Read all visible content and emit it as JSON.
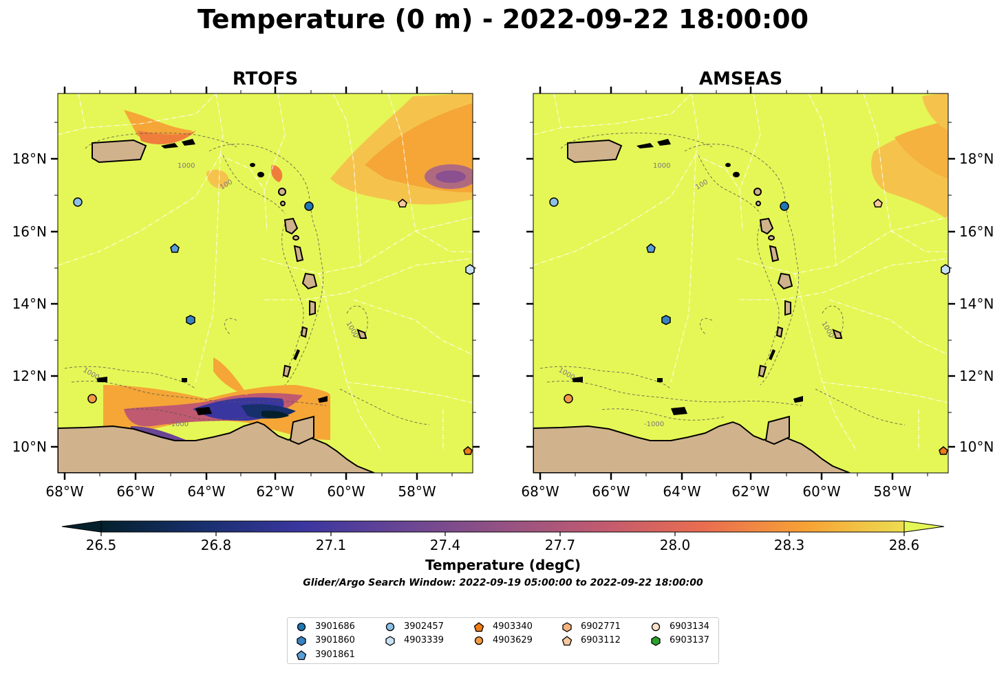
{
  "title": "Temperature (0 m) - 2022-09-22 18:00:00",
  "panels": [
    {
      "title": "RTOFS"
    },
    {
      "title": "AMSEAS"
    }
  ],
  "axes": {
    "lon_ticks": [
      "68°W",
      "66°W",
      "64°W",
      "62°W",
      "60°W",
      "58°W"
    ],
    "lat_ticks": [
      "18°N",
      "16°N",
      "14°N",
      "12°N",
      "10°N"
    ],
    "contour_labels": [
      "1000",
      "100",
      "1000",
      "1000",
      "-1000"
    ]
  },
  "colorbar": {
    "label": "Temperature (degC)",
    "ticks": [
      "26.5",
      "26.8",
      "27.1",
      "27.4",
      "27.7",
      "28.0",
      "28.3",
      "28.6"
    ],
    "min": 26.5,
    "max": 28.6,
    "colormap": "thermal",
    "extend": "both"
  },
  "subtitle": "Glider/Argo Search Window: 2022-09-19 05:00:00 to 2022-09-22 18:00:00",
  "colors": {
    "ocean_base": "#e5f756",
    "land": "#d0b28c",
    "warm_anomaly": "#f5a636",
    "cold_core": "#402b8c"
  },
  "legend": {
    "items": [
      {
        "id": "3901686",
        "marker": "circle",
        "color": "#1f77b4"
      },
      {
        "id": "3901860",
        "marker": "hexagon",
        "color": "#3a83c0"
      },
      {
        "id": "3901861",
        "marker": "pentagon",
        "color": "#5a9ed6"
      },
      {
        "id": "3902457",
        "marker": "circle",
        "color": "#8cc0e6"
      },
      {
        "id": "4903339",
        "marker": "hexagon",
        "color": "#c8e2f5"
      },
      {
        "id": "4903340",
        "marker": "pentagon",
        "color": "#ef7c14"
      },
      {
        "id": "4903629",
        "marker": "circle",
        "color": "#f49a45"
      },
      {
        "id": "6902771",
        "marker": "hexagon",
        "color": "#f6b27c"
      },
      {
        "id": "6903112",
        "marker": "pentagon",
        "color": "#f8c99e"
      },
      {
        "id": "6903134",
        "marker": "circle",
        "color": "#fde3cc"
      },
      {
        "id": "6903137",
        "marker": "hexagon",
        "color": "#2ca02c"
      }
    ]
  }
}
